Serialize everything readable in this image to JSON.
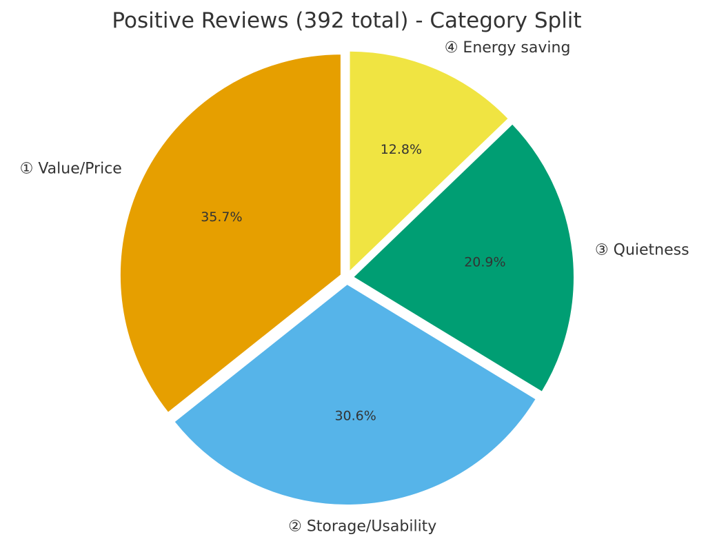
{
  "chart_data": {
    "type": "pie",
    "title": "Positive Reviews (392 total) - Category Split",
    "slices": [
      {
        "label": "① Value/Price",
        "value": 35.7,
        "pct_label": "35.7%",
        "color": "#E69F00"
      },
      {
        "label": "② Storage/Usability",
        "value": 30.6,
        "pct_label": "30.6%",
        "color": "#56B4E9"
      },
      {
        "label": "③ Quietness",
        "value": 20.9,
        "pct_label": "20.9%",
        "color": "#009E73"
      },
      {
        "label": "④ Energy saving",
        "value": 12.8,
        "pct_label": "12.8%",
        "color": "#F0E442"
      }
    ],
    "start_angle": "12 o'clock",
    "direction": "counter-clockwise",
    "exploded": true,
    "legend": "none"
  }
}
